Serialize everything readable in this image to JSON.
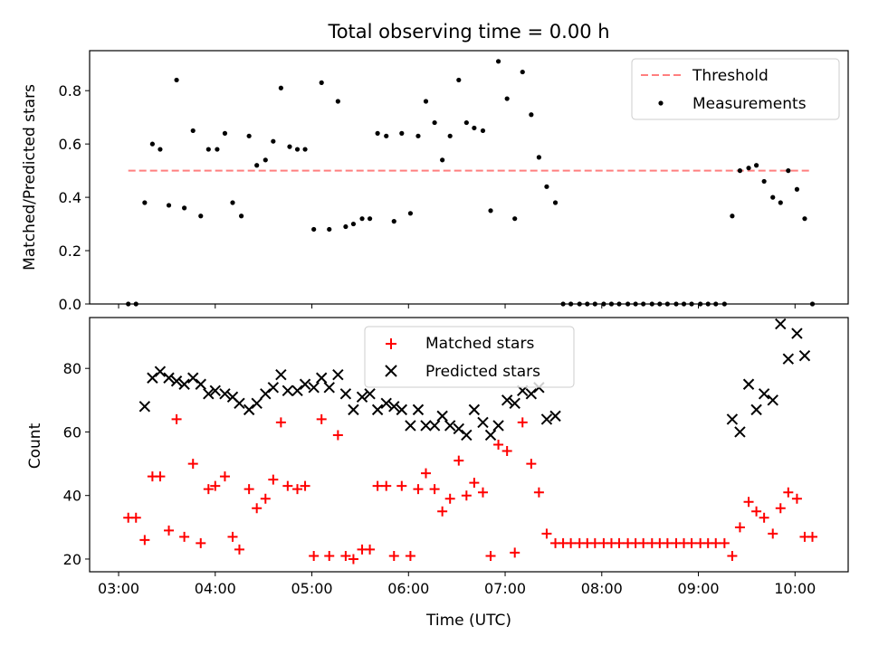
{
  "title": "Total observing time = 0.00 h",
  "chart_data": [
    {
      "type": "scatter",
      "panel": "top",
      "ylabel": "Matched/Predicted stars",
      "xlabel": "",
      "ylim": [
        0,
        0.95
      ],
      "xlim_hours": [
        2.7,
        10.55
      ],
      "x_tick_labels": [
        "03:00",
        "04:00",
        "05:00",
        "06:00",
        "07:00",
        "08:00",
        "09:00",
        "10:00"
      ],
      "x_tick_hours": [
        3,
        4,
        5,
        6,
        7,
        8,
        9,
        10
      ],
      "show_x_tick_labels": false,
      "y_ticks": [
        0.0,
        0.2,
        0.4,
        0.6,
        0.8
      ],
      "y_tick_labels": [
        "0.0",
        "0.2",
        "0.4",
        "0.6",
        "0.8"
      ],
      "legend_position": "top-right",
      "threshold": {
        "name": "Threshold",
        "value": 0.5,
        "x_range": [
          3.1,
          10.15
        ],
        "color": "#ff7f7f"
      },
      "series": [
        {
          "name": "Measurements",
          "color": "#000000",
          "points": [
            [
              3.1,
              0.0
            ],
            [
              3.18,
              0.0
            ],
            [
              3.27,
              0.38
            ],
            [
              3.35,
              0.6
            ],
            [
              3.43,
              0.58
            ],
            [
              3.52,
              0.37
            ],
            [
              3.6,
              0.84
            ],
            [
              3.68,
              0.36
            ],
            [
              3.77,
              0.65
            ],
            [
              3.85,
              0.33
            ],
            [
              3.93,
              0.58
            ],
            [
              4.02,
              0.58
            ],
            [
              4.1,
              0.64
            ],
            [
              4.18,
              0.38
            ],
            [
              4.27,
              0.33
            ],
            [
              4.35,
              0.63
            ],
            [
              4.43,
              0.52
            ],
            [
              4.52,
              0.54
            ],
            [
              4.6,
              0.61
            ],
            [
              4.68,
              0.81
            ],
            [
              4.77,
              0.59
            ],
            [
              4.85,
              0.58
            ],
            [
              4.93,
              0.58
            ],
            [
              5.02,
              0.28
            ],
            [
              5.1,
              0.83
            ],
            [
              5.18,
              0.28
            ],
            [
              5.27,
              0.76
            ],
            [
              5.35,
              0.29
            ],
            [
              5.43,
              0.3
            ],
            [
              5.52,
              0.32
            ],
            [
              5.6,
              0.32
            ],
            [
              5.68,
              0.64
            ],
            [
              5.77,
              0.63
            ],
            [
              5.85,
              0.31
            ],
            [
              5.93,
              0.64
            ],
            [
              6.02,
              0.34
            ],
            [
              6.1,
              0.63
            ],
            [
              6.18,
              0.76
            ],
            [
              6.27,
              0.68
            ],
            [
              6.35,
              0.54
            ],
            [
              6.43,
              0.63
            ],
            [
              6.52,
              0.84
            ],
            [
              6.6,
              0.68
            ],
            [
              6.68,
              0.66
            ],
            [
              6.77,
              0.65
            ],
            [
              6.85,
              0.35
            ],
            [
              6.93,
              0.91
            ],
            [
              7.02,
              0.77
            ],
            [
              7.1,
              0.32
            ],
            [
              7.18,
              0.87
            ],
            [
              7.27,
              0.71
            ],
            [
              7.35,
              0.55
            ],
            [
              7.43,
              0.44
            ],
            [
              7.52,
              0.38
            ],
            [
              7.6,
              0.0
            ],
            [
              7.68,
              0.0
            ],
            [
              7.77,
              0.0
            ],
            [
              7.85,
              0.0
            ],
            [
              7.93,
              0.0
            ],
            [
              8.02,
              0.0
            ],
            [
              8.1,
              0.0
            ],
            [
              8.18,
              0.0
            ],
            [
              8.27,
              0.0
            ],
            [
              8.35,
              0.0
            ],
            [
              8.43,
              0.0
            ],
            [
              8.52,
              0.0
            ],
            [
              8.6,
              0.0
            ],
            [
              8.68,
              0.0
            ],
            [
              8.77,
              0.0
            ],
            [
              8.85,
              0.0
            ],
            [
              8.93,
              0.0
            ],
            [
              9.02,
              0.0
            ],
            [
              9.1,
              0.0
            ],
            [
              9.18,
              0.0
            ],
            [
              9.27,
              0.0
            ],
            [
              9.35,
              0.33
            ],
            [
              9.43,
              0.5
            ],
            [
              9.52,
              0.51
            ],
            [
              9.6,
              0.52
            ],
            [
              9.68,
              0.46
            ],
            [
              9.77,
              0.4
            ],
            [
              9.85,
              0.38
            ],
            [
              9.93,
              0.5
            ],
            [
              10.02,
              0.43
            ],
            [
              10.1,
              0.32
            ],
            [
              10.18,
              0.0
            ]
          ]
        }
      ]
    },
    {
      "type": "scatter",
      "panel": "bottom",
      "xlabel": "Time (UTC)",
      "ylabel": "Count",
      "ylim": [
        16,
        96
      ],
      "xlim_hours": [
        2.7,
        10.55
      ],
      "x_tick_labels": [
        "03:00",
        "04:00",
        "05:00",
        "06:00",
        "07:00",
        "08:00",
        "09:00",
        "10:00"
      ],
      "x_tick_hours": [
        3,
        4,
        5,
        6,
        7,
        8,
        9,
        10
      ],
      "y_ticks": [
        20,
        40,
        60,
        80
      ],
      "y_tick_labels": [
        "20",
        "40",
        "60",
        "80"
      ],
      "legend_position": "top-center",
      "series": [
        {
          "name": "Matched stars",
          "marker": "plus",
          "color": "#ff0000",
          "points": [
            [
              3.1,
              33
            ],
            [
              3.18,
              33
            ],
            [
              3.27,
              26
            ],
            [
              3.35,
              46
            ],
            [
              3.43,
              46
            ],
            [
              3.52,
              29
            ],
            [
              3.6,
              64
            ],
            [
              3.68,
              27
            ],
            [
              3.77,
              50
            ],
            [
              3.85,
              25
            ],
            [
              3.93,
              42
            ],
            [
              4.0,
              43
            ],
            [
              4.1,
              46
            ],
            [
              4.18,
              27
            ],
            [
              4.25,
              23
            ],
            [
              4.35,
              42
            ],
            [
              4.43,
              36
            ],
            [
              4.52,
              39
            ],
            [
              4.6,
              45
            ],
            [
              4.68,
              63
            ],
            [
              4.75,
              43
            ],
            [
              4.85,
              42
            ],
            [
              4.93,
              43
            ],
            [
              5.02,
              21
            ],
            [
              5.1,
              64
            ],
            [
              5.18,
              21
            ],
            [
              5.27,
              59
            ],
            [
              5.35,
              21
            ],
            [
              5.43,
              20
            ],
            [
              5.52,
              23
            ],
            [
              5.6,
              23
            ],
            [
              5.68,
              43
            ],
            [
              5.77,
              43
            ],
            [
              5.85,
              21
            ],
            [
              5.93,
              43
            ],
            [
              6.02,
              21
            ],
            [
              6.1,
              42
            ],
            [
              6.18,
              47
            ],
            [
              6.27,
              42
            ],
            [
              6.35,
              35
            ],
            [
              6.43,
              39
            ],
            [
              6.52,
              51
            ],
            [
              6.6,
              40
            ],
            [
              6.68,
              44
            ],
            [
              6.77,
              41
            ],
            [
              6.85,
              21
            ],
            [
              6.93,
              56
            ],
            [
              7.02,
              54
            ],
            [
              7.1,
              22
            ],
            [
              7.18,
              63
            ],
            [
              7.27,
              50
            ],
            [
              7.35,
              41
            ],
            [
              7.43,
              28
            ],
            [
              7.52,
              25
            ],
            [
              7.6,
              25
            ],
            [
              7.68,
              25
            ],
            [
              7.77,
              25
            ],
            [
              7.85,
              25
            ],
            [
              7.93,
              25
            ],
            [
              8.02,
              25
            ],
            [
              8.1,
              25
            ],
            [
              8.18,
              25
            ],
            [
              8.27,
              25
            ],
            [
              8.35,
              25
            ],
            [
              8.43,
              25
            ],
            [
              8.52,
              25
            ],
            [
              8.6,
              25
            ],
            [
              8.68,
              25
            ],
            [
              8.77,
              25
            ],
            [
              8.85,
              25
            ],
            [
              8.93,
              25
            ],
            [
              9.02,
              25
            ],
            [
              9.1,
              25
            ],
            [
              9.18,
              25
            ],
            [
              9.27,
              25
            ],
            [
              9.35,
              21
            ],
            [
              9.43,
              30
            ],
            [
              9.52,
              38
            ],
            [
              9.6,
              35
            ],
            [
              9.68,
              33
            ],
            [
              9.77,
              28
            ],
            [
              9.85,
              36
            ],
            [
              9.93,
              41
            ],
            [
              10.02,
              39
            ],
            [
              10.1,
              27
            ],
            [
              10.18,
              27
            ]
          ]
        },
        {
          "name": "Predicted stars",
          "marker": "x",
          "color": "#000000",
          "points": [
            [
              3.27,
              68
            ],
            [
              3.35,
              77
            ],
            [
              3.43,
              79
            ],
            [
              3.52,
              77
            ],
            [
              3.6,
              76
            ],
            [
              3.68,
              75
            ],
            [
              3.77,
              77
            ],
            [
              3.85,
              75
            ],
            [
              3.93,
              72
            ],
            [
              4.0,
              73
            ],
            [
              4.1,
              72
            ],
            [
              4.18,
              71
            ],
            [
              4.25,
              69
            ],
            [
              4.35,
              67
            ],
            [
              4.43,
              69
            ],
            [
              4.52,
              72
            ],
            [
              4.6,
              74
            ],
            [
              4.68,
              78
            ],
            [
              4.75,
              73
            ],
            [
              4.85,
              73
            ],
            [
              4.93,
              75
            ],
            [
              5.02,
              74
            ],
            [
              5.1,
              77
            ],
            [
              5.18,
              74
            ],
            [
              5.27,
              78
            ],
            [
              5.35,
              72
            ],
            [
              5.43,
              67
            ],
            [
              5.52,
              71
            ],
            [
              5.6,
              72
            ],
            [
              5.68,
              67
            ],
            [
              5.77,
              69
            ],
            [
              5.85,
              68
            ],
            [
              5.93,
              67
            ],
            [
              6.02,
              62
            ],
            [
              6.1,
              67
            ],
            [
              6.18,
              62
            ],
            [
              6.27,
              62
            ],
            [
              6.35,
              65
            ],
            [
              6.43,
              62
            ],
            [
              6.52,
              61
            ],
            [
              6.6,
              59
            ],
            [
              6.68,
              67
            ],
            [
              6.77,
              63
            ],
            [
              6.85,
              59
            ],
            [
              6.93,
              62
            ],
            [
              7.02,
              70
            ],
            [
              7.1,
              69
            ],
            [
              7.18,
              73
            ],
            [
              7.27,
              72
            ],
            [
              7.35,
              74
            ],
            [
              7.43,
              64
            ],
            [
              7.52,
              65
            ],
            [
              9.35,
              64
            ],
            [
              9.43,
              60
            ],
            [
              9.52,
              75
            ],
            [
              9.6,
              67
            ],
            [
              9.68,
              72
            ],
            [
              9.77,
              70
            ],
            [
              9.85,
              94
            ],
            [
              9.93,
              83
            ],
            [
              10.02,
              91
            ],
            [
              10.1,
              84
            ]
          ]
        }
      ]
    }
  ]
}
